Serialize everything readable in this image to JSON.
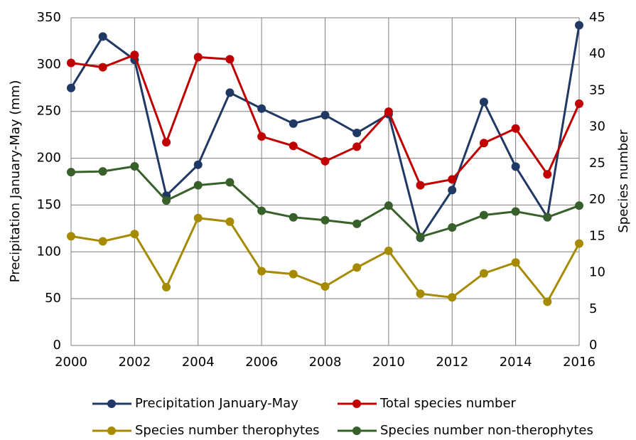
{
  "chart_data": {
    "type": "line",
    "y_label": "Precipitation January-May (mm)",
    "y2_label": "Species number",
    "x": [
      2000,
      2001,
      2002,
      2003,
      2004,
      2005,
      2006,
      2007,
      2008,
      2009,
      2010,
      2011,
      2012,
      2013,
      2014,
      2015,
      2016
    ],
    "xlim": [
      2000,
      2016
    ],
    "xticks": [
      2000,
      2002,
      2004,
      2006,
      2008,
      2010,
      2012,
      2014,
      2016
    ],
    "ylim": [
      0,
      350
    ],
    "yticks": [
      0,
      50,
      100,
      150,
      200,
      250,
      300,
      350
    ],
    "y2lim": [
      0,
      45
    ],
    "y2ticks": [
      0,
      5,
      10,
      15,
      20,
      25,
      30,
      35,
      40,
      45
    ],
    "grid": true,
    "series": [
      {
        "name": "Precipitation January-May",
        "color": "#203864",
        "values": [
          275,
          330,
          305,
          160,
          193,
          270,
          253,
          237,
          246,
          227,
          247,
          115,
          166,
          260,
          191,
          137,
          342
        ]
      },
      {
        "name": "Total species number",
        "color": "#c00000",
        "axis": "y2",
        "values": [
          38.8,
          38.2,
          39.9,
          27.9,
          39.6,
          39.3,
          28.7,
          27.4,
          25.3,
          27.3,
          32.1,
          22.0,
          22.8,
          27.8,
          29.8,
          23.5,
          33.2
        ]
      },
      {
        "name": "Species number therophytes",
        "color": "#a68a00",
        "axis": "y2",
        "values": [
          15.0,
          14.3,
          15.3,
          8.0,
          17.5,
          17.0,
          10.2,
          9.8,
          8.1,
          10.7,
          13.0,
          7.1,
          6.6,
          9.9,
          11.4,
          6.0,
          14.0
        ]
      },
      {
        "name": "Species number non-therophytes",
        "color": "#38602a",
        "axis": "y2",
        "values": [
          23.8,
          23.9,
          24.6,
          19.9,
          22.0,
          22.4,
          18.5,
          17.6,
          17.2,
          16.7,
          19.2,
          14.9,
          16.2,
          17.9,
          18.4,
          17.6,
          19.2
        ]
      }
    ]
  }
}
